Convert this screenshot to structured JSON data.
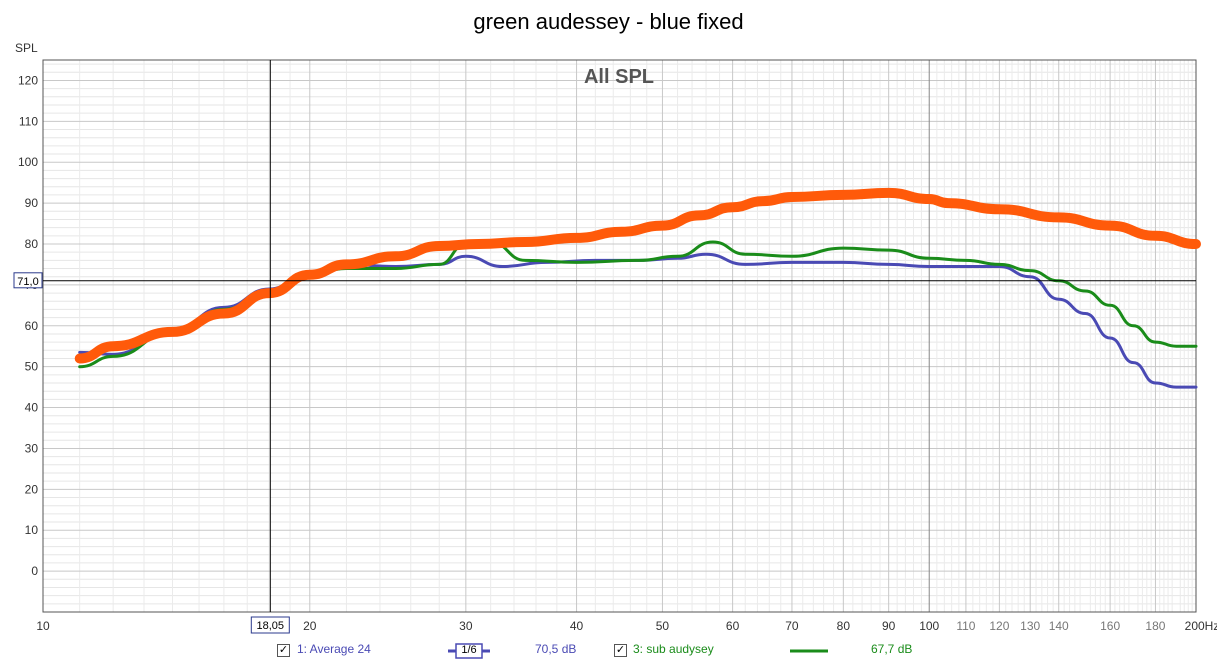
{
  "chart_data": {
    "type": "line",
    "title": "green audessey - blue fixed",
    "subtitle": "All SPL",
    "ylabel": "SPL",
    "xunit": "Hz",
    "xscale": "log",
    "xlim": [
      10,
      200
    ],
    "ylim": [
      -10,
      125
    ],
    "grid": true,
    "xticks_major": [
      10,
      20,
      30,
      40,
      50,
      60,
      70,
      80,
      90,
      100,
      110,
      120,
      130,
      140,
      160,
      180,
      200
    ],
    "xtick_labels": [
      "10",
      "20",
      "30",
      "40",
      "50",
      "60",
      "70",
      "80",
      "90",
      "100",
      "110",
      "120",
      "130",
      "140",
      "160",
      "180",
      "200Hz"
    ],
    "yticks": [
      0,
      10,
      20,
      30,
      40,
      50,
      60,
      70,
      80,
      90,
      100,
      110,
      120
    ],
    "cursor": {
      "x": 18.05,
      "y": 71.0,
      "x_label": "18,05",
      "y_label": "71,0"
    },
    "series": [
      {
        "name": "1: Average 24",
        "color": "#4a4ab4",
        "width": 3,
        "x": [
          11,
          12,
          14,
          16,
          18,
          20,
          22,
          25,
          28,
          30,
          33,
          37,
          42,
          47,
          52,
          56,
          62,
          70,
          80,
          90,
          100,
          110,
          120,
          130,
          140,
          150,
          160,
          170,
          180,
          190,
          200
        ],
        "y": [
          53.5,
          53,
          59,
          64.5,
          69,
          73,
          75,
          74.5,
          75,
          77,
          74.5,
          75.5,
          76,
          76,
          76.5,
          77.5,
          75,
          75.5,
          75.5,
          75,
          74.5,
          74.5,
          74.5,
          72,
          66.5,
          63,
          57,
          51,
          46,
          45,
          45
        ]
      },
      {
        "name": "3: sub audysey",
        "color": "#1a8c1a",
        "width": 3,
        "x": [
          11,
          12,
          14,
          16,
          18,
          20,
          22,
          25,
          28,
          30,
          32,
          35,
          40,
          47,
          52,
          57,
          62,
          70,
          80,
          90,
          100,
          110,
          120,
          130,
          140,
          150,
          160,
          170,
          180,
          190,
          200
        ],
        "y": [
          50,
          52.5,
          58.5,
          64,
          68.5,
          72.5,
          74,
          74,
          75,
          80,
          80.5,
          76,
          75.5,
          76,
          77,
          80.5,
          77.5,
          77,
          79,
          78.5,
          76.5,
          76,
          75,
          73.5,
          71,
          68.5,
          65,
          60,
          56,
          55,
          55
        ]
      },
      {
        "name": "",
        "color": "#ff5a0a",
        "width": 10,
        "x": [
          11,
          12,
          14,
          16,
          18,
          20,
          22,
          25,
          28,
          31,
          35,
          40,
          45,
          50,
          55,
          60,
          65,
          70,
          80,
          90,
          100,
          105,
          120,
          140,
          160,
          180,
          200
        ],
        "y": [
          52,
          55,
          58.5,
          63,
          68,
          72.5,
          75,
          77,
          79.5,
          80,
          80.5,
          81.5,
          83,
          84.5,
          87,
          89,
          90.5,
          91.5,
          92,
          92.5,
          91,
          90,
          88.5,
          86.5,
          84.5,
          82,
          80
        ]
      }
    ]
  },
  "legend": {
    "items": [
      {
        "label": "1: Average 24",
        "checked": "✓",
        "smoothing": "1/6",
        "level": "70,5 dB"
      },
      {
        "label": "3: sub audysey",
        "checked": "✓",
        "level": "67,7 dB"
      }
    ]
  }
}
